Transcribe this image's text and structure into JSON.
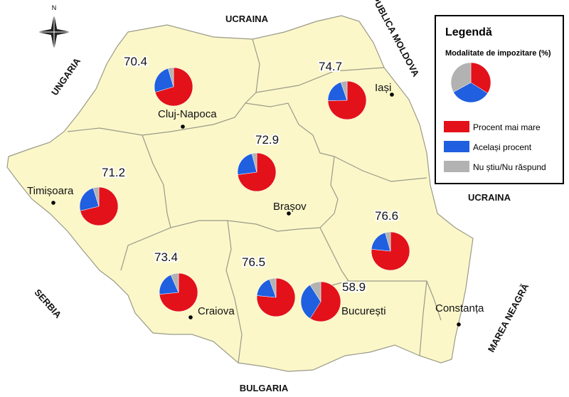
{
  "map": {
    "compass": "N",
    "neighbors": [
      "UCRAINA",
      "REPUBLICA MOLDOVA",
      "UNGARIA",
      "UCRAINA",
      "SERBIA",
      "MAREA NEAGRĂ",
      "BULGARIA"
    ],
    "cities": [
      "Cluj-Napoca",
      "Iași",
      "Timișoara",
      "Brașov",
      "Craiova",
      "București",
      "Constanța"
    ]
  },
  "legend": {
    "title": "Legendă",
    "subtitle": "Modalitate de impozitare (%)",
    "items": [
      {
        "label": "Procent mai mare",
        "color": "#e3111a"
      },
      {
        "label": "Același procent",
        "color": "#1f5fe0"
      },
      {
        "label": "Nu știu/Nu răspund",
        "color": "#b2b2b2"
      }
    ]
  },
  "regions": [
    {
      "values": [
        70.4,
        25,
        4.6
      ]
    },
    {
      "values": [
        74.7,
        20,
        5.3
      ]
    },
    {
      "values": [
        72.9,
        23,
        4.1
      ]
    },
    {
      "values": [
        71.2,
        24,
        4.8
      ]
    },
    {
      "values": [
        76.6,
        19,
        4.4
      ]
    },
    {
      "values": [
        73.4,
        20,
        6.6
      ]
    },
    {
      "values": [
        76.5,
        18,
        5.5
      ]
    },
    {
      "values": [
        58.9,
        32,
        9.1
      ]
    }
  ]
}
